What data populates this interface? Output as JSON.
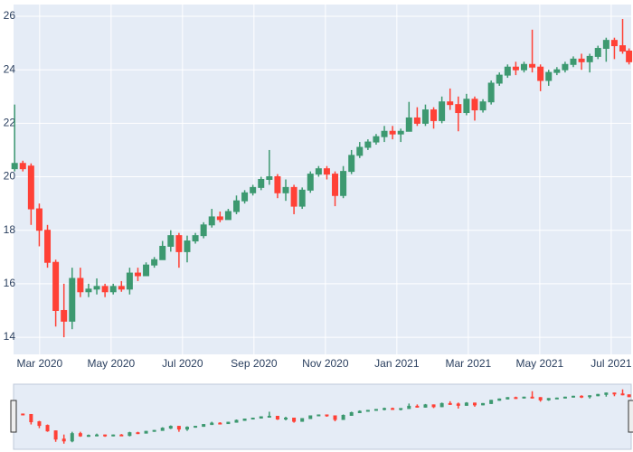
{
  "chart_data": {
    "type": "candlestick",
    "x": [
      -0.7,
      -0.47,
      -0.24,
      -0.01,
      0.22,
      0.45,
      0.68,
      0.91,
      1.14,
      1.37,
      1.6,
      1.83,
      2.06,
      2.29,
      2.52,
      2.75,
      2.98,
      3.21,
      3.44,
      3.67,
      3.9,
      4.13,
      4.36,
      4.59,
      4.82,
      5.05,
      5.28,
      5.51,
      5.74,
      5.97,
      6.2,
      6.43,
      6.66,
      6.89,
      7.12,
      7.35,
      7.58,
      7.81,
      8.04,
      8.27,
      8.5,
      8.73,
      8.96,
      9.19,
      9.42,
      9.65,
      9.88,
      10.11,
      10.34,
      10.57,
      10.8,
      11.03,
      11.26,
      11.49,
      11.72,
      11.95,
      12.18,
      12.41,
      12.64,
      12.87,
      13.1,
      13.33,
      13.56,
      13.79,
      14.02,
      14.25,
      14.48,
      14.71,
      14.94,
      15.17,
      15.4,
      15.63,
      15.86,
      16.09,
      16.32,
      16.5
    ],
    "open": [
      20.3,
      20.5,
      20.4,
      18.8,
      18.0,
      16.8,
      15.0,
      14.6,
      16.2,
      15.7,
      15.8,
      15.9,
      15.7,
      15.9,
      15.8,
      16.4,
      16.3,
      16.7,
      16.9,
      17.4,
      17.8,
      17.2,
      17.6,
      17.8,
      18.2,
      18.5,
      18.4,
      18.7,
      19.1,
      19.4,
      19.6,
      19.9,
      20.0,
      19.4,
      19.6,
      18.9,
      19.5,
      20.1,
      20.3,
      20.1,
      19.3,
      20.2,
      20.8,
      21.1,
      21.3,
      21.5,
      21.7,
      21.6,
      21.7,
      22.2,
      22.0,
      22.5,
      22.1,
      22.8,
      22.7,
      22.4,
      22.9,
      22.5,
      22.8,
      23.5,
      23.8,
      24.1,
      24.0,
      24.2,
      24.1,
      23.6,
      23.9,
      24.0,
      24.2,
      24.4,
      24.3,
      24.5,
      24.8,
      25.1,
      24.9,
      24.7
    ],
    "high": [
      22.7,
      20.6,
      20.5,
      19.0,
      18.2,
      16.9,
      16.0,
      16.6,
      16.6,
      16.0,
      16.2,
      16.0,
      16.0,
      16.1,
      16.6,
      16.6,
      16.8,
      17.0,
      17.6,
      18.0,
      17.9,
      17.8,
      17.9,
      18.3,
      18.8,
      18.7,
      18.8,
      19.3,
      19.5,
      19.7,
      20.0,
      21.0,
      20.1,
      19.9,
      19.7,
      19.6,
      20.2,
      20.4,
      20.4,
      20.2,
      20.4,
      21.0,
      21.3,
      21.4,
      21.6,
      21.9,
      21.9,
      21.8,
      22.8,
      22.6,
      22.7,
      22.6,
      23.0,
      23.3,
      23.0,
      23.1,
      23.0,
      22.9,
      23.6,
      23.9,
      24.2,
      24.3,
      24.3,
      25.5,
      24.2,
      24.0,
      24.1,
      24.3,
      24.5,
      24.6,
      24.6,
      24.9,
      25.2,
      25.2,
      25.9,
      24.8
    ],
    "low": [
      20.2,
      20.2,
      18.2,
      17.4,
      16.6,
      14.4,
      14.0,
      14.3,
      15.5,
      15.5,
      15.6,
      15.5,
      15.6,
      15.7,
      15.6,
      16.1,
      16.3,
      16.6,
      16.9,
      17.2,
      16.6,
      16.8,
      17.5,
      17.7,
      18.1,
      18.3,
      18.4,
      18.6,
      19.0,
      19.3,
      19.5,
      19.7,
      19.2,
      19.1,
      18.6,
      18.8,
      19.4,
      20.0,
      19.9,
      18.9,
      19.2,
      20.1,
      20.7,
      21.0,
      21.2,
      21.3,
      21.4,
      21.3,
      21.7,
      21.9,
      21.9,
      21.8,
      22.0,
      22.5,
      21.7,
      22.3,
      22.1,
      22.4,
      22.7,
      23.4,
      23.7,
      23.8,
      23.9,
      23.9,
      23.2,
      23.4,
      23.8,
      23.9,
      24.1,
      24.0,
      23.9,
      24.4,
      24.3,
      24.4,
      24.6,
      24.2
    ],
    "close": [
      20.5,
      20.3,
      18.8,
      18.0,
      16.8,
      15.0,
      14.6,
      16.2,
      15.7,
      15.8,
      15.9,
      15.7,
      15.9,
      15.8,
      16.4,
      16.3,
      16.7,
      16.9,
      17.4,
      17.8,
      17.2,
      17.6,
      17.8,
      18.2,
      18.5,
      18.4,
      18.7,
      19.1,
      19.4,
      19.6,
      19.9,
      20.0,
      19.4,
      19.6,
      18.9,
      19.5,
      20.1,
      20.3,
      20.1,
      19.3,
      20.2,
      20.8,
      21.1,
      21.3,
      21.5,
      21.7,
      21.6,
      21.7,
      22.2,
      22.0,
      22.5,
      22.1,
      22.8,
      22.7,
      22.4,
      22.9,
      22.5,
      22.8,
      23.5,
      23.8,
      24.1,
      24.0,
      24.2,
      24.1,
      23.6,
      23.9,
      24.0,
      24.2,
      24.4,
      24.3,
      24.5,
      24.8,
      25.1,
      24.9,
      24.7,
      24.3
    ],
    "increasing_color": "#3D9970",
    "decreasing_color": "#FF4136",
    "xlim": [
      -0.73,
      16.56
    ],
    "xticks": [
      {
        "value": 0,
        "label": "Mar 2020"
      },
      {
        "value": 2,
        "label": "May 2020"
      },
      {
        "value": 4,
        "label": "Jul 2020"
      },
      {
        "value": 6,
        "label": "Sep 2020"
      },
      {
        "value": 8,
        "label": "Nov 2020"
      },
      {
        "value": 10,
        "label": "Jan 2021"
      },
      {
        "value": 12,
        "label": "Mar 2021"
      },
      {
        "value": 14,
        "label": "May 2021"
      },
      {
        "value": 16,
        "label": "Jul 2021"
      }
    ],
    "ylim": [
      13.36,
      26.44
    ],
    "yticks": [
      14,
      16,
      18,
      20,
      22,
      24,
      26
    ],
    "grid": true,
    "rangeslider": true
  }
}
